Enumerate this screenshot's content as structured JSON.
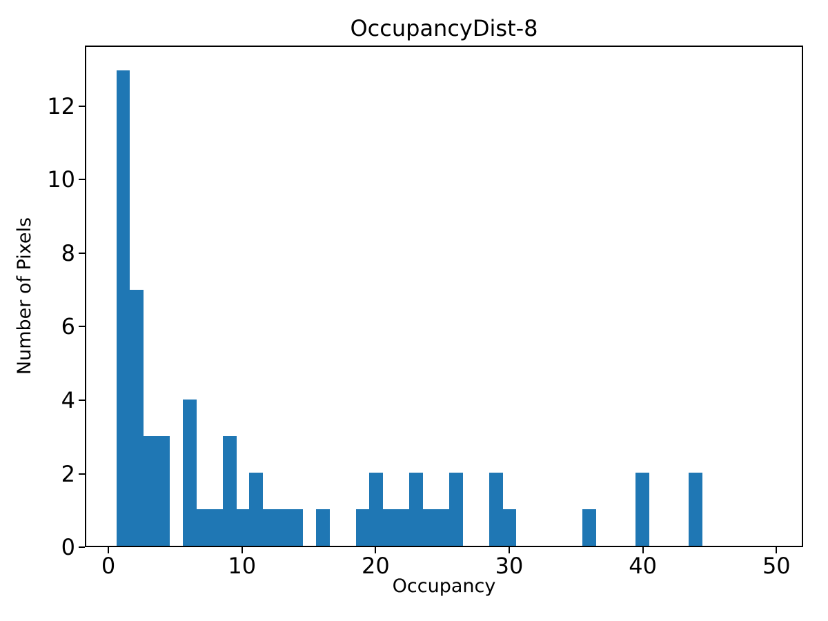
{
  "figure": {
    "background": "#ffffff",
    "text_color": "#000000"
  },
  "chart_data": {
    "type": "bar",
    "subtype": "histogram",
    "title": "OccupancyDist-8",
    "xlabel": "Occupancy",
    "ylabel": "Number of Pixels",
    "bar_color": "#1f77b4",
    "grid": false,
    "legend": null,
    "bin_width": 1,
    "bin_centers": [
      1,
      2,
      3,
      4,
      5,
      6,
      7,
      8,
      9,
      10,
      11,
      12,
      13,
      14,
      15,
      16,
      17,
      18,
      19,
      20,
      21,
      22,
      23,
      24,
      25,
      26,
      27,
      28,
      29,
      30,
      31,
      32,
      33,
      34,
      35,
      36,
      37,
      38,
      39,
      40,
      41,
      42,
      43,
      44
    ],
    "counts": [
      13,
      7,
      3,
      3,
      0,
      4,
      1,
      1,
      3,
      1,
      2,
      1,
      1,
      1,
      0,
      1,
      0,
      0,
      1,
      2,
      1,
      1,
      2,
      1,
      1,
      2,
      0,
      0,
      2,
      1,
      0,
      0,
      0,
      0,
      0,
      1,
      0,
      0,
      0,
      2,
      0,
      0,
      0,
      2
    ],
    "xticks": [
      0,
      10,
      20,
      30,
      40,
      50
    ],
    "yticks": [
      0,
      2,
      4,
      6,
      8,
      10,
      12
    ],
    "xlim": [
      -1.76,
      52.0
    ],
    "ylim": [
      0,
      13.65
    ]
  }
}
